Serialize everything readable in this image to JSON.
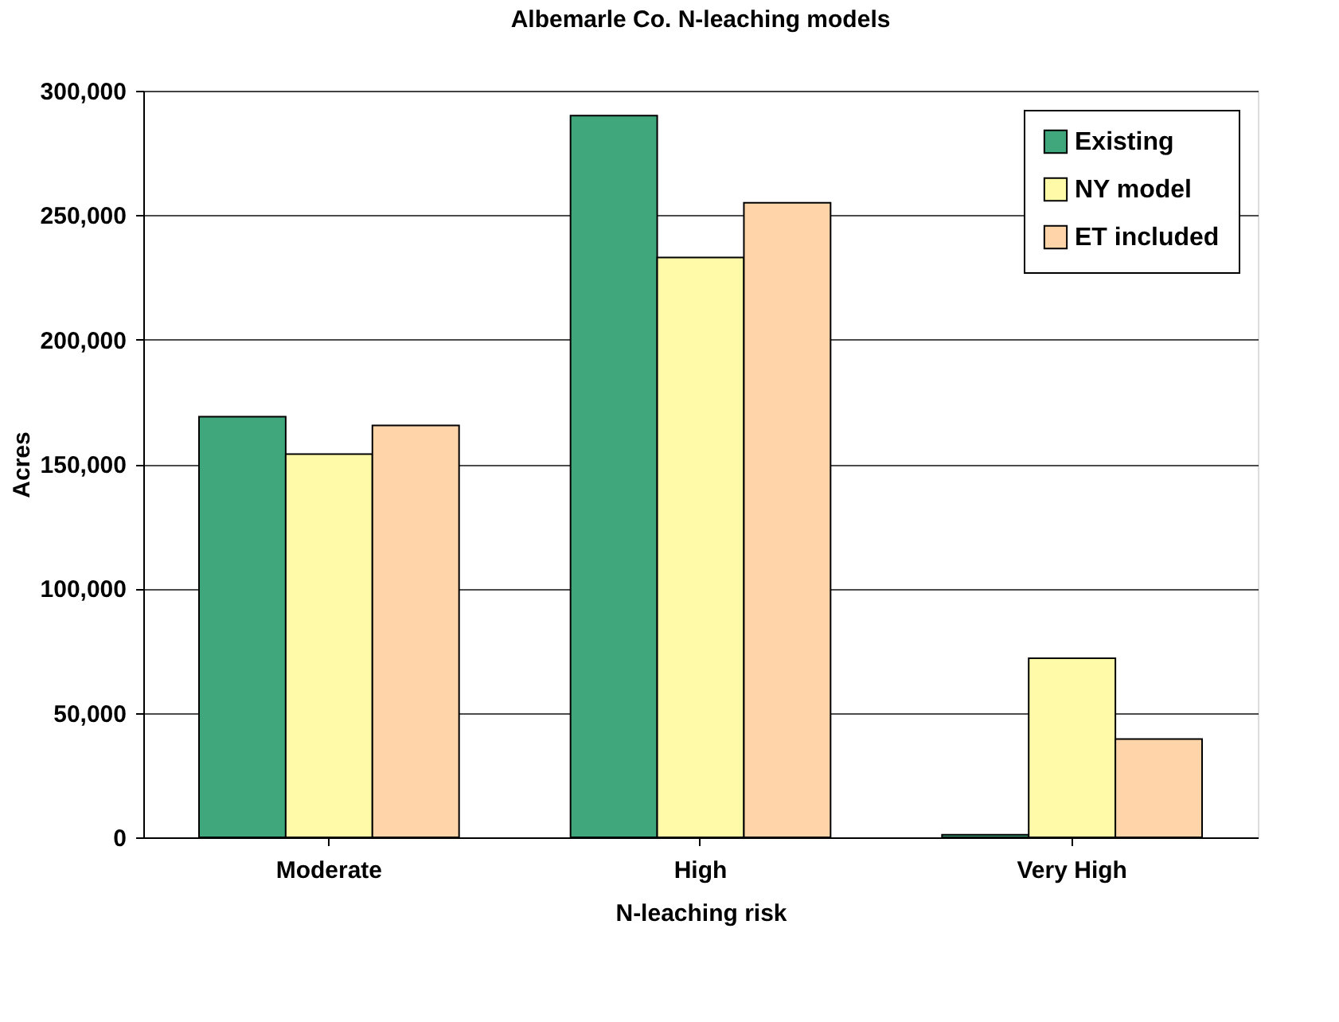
{
  "chart_data": {
    "type": "bar",
    "title": "Albemarle Co. N-leaching models",
    "xlabel": "N-leaching risk",
    "ylabel": "Acres",
    "categories": [
      "Moderate",
      "High",
      "Very High"
    ],
    "series": [
      {
        "name": "Existing",
        "color": "#3fa77b",
        "values": [
          169000,
          290000,
          1000
        ]
      },
      {
        "name": "NY model",
        "color": "#fffaa8",
        "values": [
          154000,
          233000,
          72000
        ]
      },
      {
        "name": "ET included",
        "color": "#fed4a8",
        "values": [
          165500,
          255000,
          39500
        ]
      }
    ],
    "ylim": [
      0,
      300000
    ],
    "yticks": [
      0,
      {
        "value": 50000,
        "label": "50,000"
      },
      {
        "value": 100000,
        "label": "100,000"
      },
      {
        "value": 150000,
        "label": "150,000"
      },
      {
        "value": 200000,
        "label": "200,000"
      },
      {
        "value": 250000,
        "label": "250,000"
      },
      {
        "value": 300000,
        "label": "300,000"
      }
    ],
    "grid": "y",
    "legend": "top right"
  }
}
